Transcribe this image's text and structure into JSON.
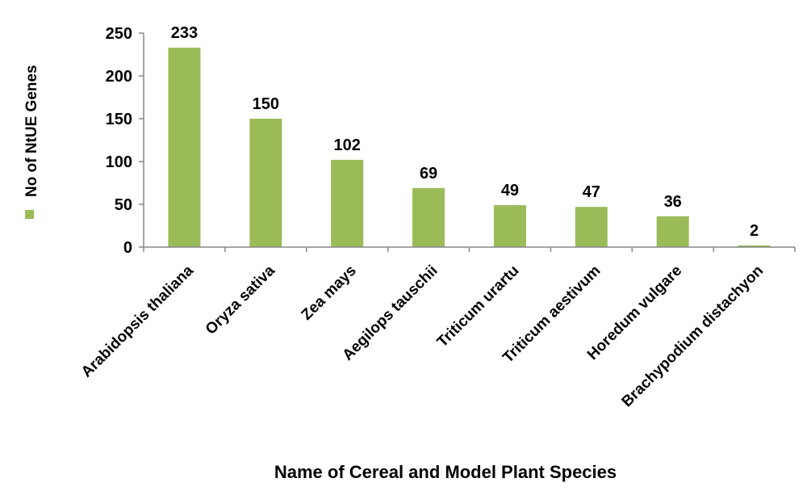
{
  "chart_data": {
    "type": "bar",
    "categories": [
      "Arabidopsis thaliana",
      "Oryza sativa",
      "Zea mays",
      "Aegilops tauschii",
      "Triticum urartu",
      "Triticum aestivum",
      "Horedum vulgare",
      "Brachypodium distachyon"
    ],
    "series": [
      {
        "name": "No of NtUE Genes",
        "values": [
          233,
          150,
          102,
          69,
          49,
          47,
          36,
          2
        ],
        "color": "#9BBB59"
      }
    ],
    "xlabel": "Name of Cereal and Model Plant Species",
    "ylabel": "",
    "ylim": [
      0,
      250
    ],
    "yticks": [
      0,
      50,
      100,
      150,
      200,
      250
    ],
    "grid": false,
    "legend_position": "left",
    "data_labels": true
  }
}
